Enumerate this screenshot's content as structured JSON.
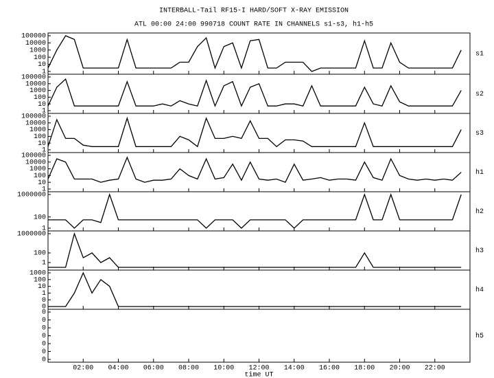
{
  "title": "INTERBALL-Tail RF15-I HARD/SOFT X-RAY EMISSION",
  "subtitle": "ATL 00:00 24:00 990718  COUNT RATE IN CHANNELS s1-s3, h1-h5",
  "chart_data": [
    {
      "type": "line",
      "name": "s1",
      "log": true,
      "color": "#000000",
      "xlim": [
        0,
        24
      ],
      "ylim": [
        1,
        100000
      ],
      "yticks": [
        100000,
        10000,
        1000,
        100,
        10,
        1
      ],
      "x": [
        0,
        0.5,
        1,
        1.5,
        2,
        2.5,
        3,
        3.5,
        4,
        4.5,
        5,
        5.5,
        6,
        6.5,
        7,
        7.5,
        8,
        8.5,
        9,
        9.5,
        10,
        10.5,
        11,
        11.5,
        12,
        12.5,
        13,
        13.5,
        14,
        14.5,
        15,
        15.5,
        16,
        16.5,
        17,
        17.5,
        18,
        18.5,
        19,
        19.5,
        20,
        20.5,
        21,
        21.5,
        22,
        22.5,
        23,
        23.5
      ],
      "values": [
        3,
        1000,
        100000,
        30000,
        3,
        3,
        3,
        3,
        3,
        30000,
        3,
        3,
        3,
        3,
        3,
        20,
        20,
        3000,
        50000,
        3,
        3000,
        10000,
        3,
        20000,
        30000,
        3,
        3,
        20,
        20,
        20,
        1,
        3,
        3,
        3,
        3,
        3,
        20000,
        3,
        3,
        10000,
        20,
        3,
        3,
        3,
        3,
        3,
        3,
        1000
      ]
    },
    {
      "type": "line",
      "name": "s2",
      "log": true,
      "color": "#000000",
      "xlim": [
        0,
        24
      ],
      "ylim": [
        1,
        100000
      ],
      "yticks": [
        100000,
        10000,
        1000,
        100,
        10,
        1
      ],
      "x": [
        0,
        0.5,
        1,
        1.5,
        2,
        2.5,
        3,
        3.5,
        4,
        4.5,
        5,
        5.5,
        6,
        6.5,
        7,
        7.5,
        8,
        8.5,
        9,
        9.5,
        10,
        10.5,
        11,
        11.5,
        12,
        12.5,
        13,
        13.5,
        14,
        14.5,
        15,
        15.5,
        16,
        16.5,
        17,
        17.5,
        18,
        18.5,
        19,
        19.5,
        20,
        20.5,
        21,
        21.5,
        22,
        22.5,
        23,
        23.5
      ],
      "values": [
        5,
        3000,
        50000,
        5,
        5,
        5,
        5,
        5,
        5,
        20000,
        5,
        5,
        5,
        10,
        5,
        30,
        10,
        5,
        30000,
        5,
        5000,
        20000,
        5,
        3000,
        10000,
        5,
        5,
        10,
        10,
        5,
        5000,
        5,
        5,
        5,
        5,
        5,
        3000,
        10,
        5,
        5000,
        20,
        5,
        5,
        5,
        5,
        5,
        5,
        1000
      ]
    },
    {
      "type": "line",
      "name": "s3",
      "log": true,
      "color": "#000000",
      "xlim": [
        0,
        24
      ],
      "ylim": [
        1,
        100000
      ],
      "yticks": [
        100000,
        10000,
        1000,
        100,
        10,
        1
      ],
      "x": [
        0,
        0.5,
        1,
        1.5,
        2,
        2.5,
        3,
        3.5,
        4,
        4.5,
        5,
        5.5,
        6,
        6.5,
        7,
        7.5,
        8,
        8.5,
        9,
        9.5,
        10,
        10.5,
        11,
        11.5,
        12,
        12.5,
        13,
        13.5,
        14,
        14.5,
        15,
        15.5,
        16,
        16.5,
        17,
        17.5,
        18,
        18.5,
        19,
        19.5,
        20,
        20.5,
        21,
        21.5,
        22,
        22.5,
        23,
        23.5
      ],
      "values": [
        3,
        30000,
        50,
        50,
        5,
        3,
        3,
        3,
        3,
        50000,
        3,
        3,
        3,
        3,
        3,
        100,
        30,
        3,
        50000,
        50,
        50,
        100,
        50,
        20000,
        50,
        50,
        3,
        30,
        30,
        20,
        3,
        3,
        3,
        3,
        3,
        3,
        10000,
        3,
        3,
        3,
        3,
        3,
        3,
        3,
        3,
        3,
        3,
        1000
      ]
    },
    {
      "type": "line",
      "name": "h1",
      "log": true,
      "color": "#000000",
      "xlim": [
        0,
        24
      ],
      "ylim": [
        1,
        100000
      ],
      "yticks": [
        100000,
        10000,
        1000,
        100,
        10,
        1
      ],
      "x": [
        0,
        0.5,
        1,
        1.5,
        2,
        2.5,
        3,
        3.5,
        4,
        4.5,
        5,
        5.5,
        6,
        6.5,
        7,
        7.5,
        8,
        8.5,
        9,
        9.5,
        10,
        10.5,
        11,
        11.5,
        12,
        12.5,
        13,
        13.5,
        14,
        14.5,
        15,
        15.5,
        16,
        16.5,
        17,
        17.5,
        18,
        18.5,
        19,
        19.5,
        20,
        20.5,
        21,
        21.5,
        22,
        22.5,
        23,
        23.5
      ],
      "values": [
        30,
        30000,
        10000,
        30,
        30,
        30,
        10,
        20,
        30,
        50000,
        30,
        10,
        20,
        20,
        30,
        1000,
        100,
        30,
        30000,
        30,
        50,
        5000,
        20,
        10000,
        30,
        20,
        30,
        10,
        5000,
        20,
        30,
        50,
        20,
        30,
        30,
        20,
        10000,
        50,
        20,
        30000,
        100,
        30,
        20,
        30,
        20,
        30,
        20,
        300
      ]
    },
    {
      "type": "line",
      "name": "h2",
      "log": true,
      "color": "#000000",
      "xlim": [
        0,
        24
      ],
      "ylim": [
        1,
        1000000
      ],
      "yticks": [
        1000000,
        100,
        1
      ],
      "x": [
        0,
        0.5,
        1,
        1.5,
        2,
        2.5,
        3,
        3.5,
        4,
        4.5,
        5,
        5.5,
        6,
        6.5,
        7,
        7.5,
        8,
        8.5,
        9,
        9.5,
        10,
        10.5,
        11,
        11.5,
        12,
        12.5,
        13,
        13.5,
        14,
        14.5,
        15,
        15.5,
        16,
        16.5,
        17,
        17.5,
        18,
        18.5,
        19,
        19.5,
        20,
        20.5,
        21,
        21.5,
        22,
        22.5,
        23,
        23.5
      ],
      "values": [
        30,
        30,
        30,
        1,
        30,
        30,
        10,
        1000000,
        30,
        30,
        30,
        30,
        30,
        30,
        30,
        30,
        30,
        30,
        1,
        30,
        30,
        30,
        1,
        30,
        30,
        30,
        30,
        30,
        1,
        30,
        30,
        30,
        30,
        30,
        30,
        30,
        1000000,
        30,
        30,
        1000000,
        30,
        30,
        30,
        30,
        30,
        30,
        30,
        1000000
      ]
    },
    {
      "type": "line",
      "name": "h3",
      "log": true,
      "color": "#000000",
      "xlim": [
        0,
        24
      ],
      "ylim": [
        0.1,
        1000000
      ],
      "yticks": [
        1000000,
        100,
        1
      ],
      "x": [
        0,
        0.5,
        1,
        1.5,
        2,
        2.5,
        3,
        3.5,
        4,
        4.5,
        5,
        5.5,
        6,
        6.5,
        7,
        7.5,
        8,
        8.5,
        9,
        9.5,
        10,
        10.5,
        11,
        11.5,
        12,
        12.5,
        13,
        13.5,
        14,
        14.5,
        15,
        15.5,
        16,
        16.5,
        17,
        17.5,
        18,
        18.5,
        19,
        19.5,
        20,
        20.5,
        21,
        21.5,
        22,
        22.5,
        23,
        23.5
      ],
      "values": [
        0.1,
        0.1,
        0.1,
        1000000,
        10,
        100,
        1,
        10,
        0.1,
        0.1,
        0.1,
        0.1,
        0.1,
        0.1,
        0.1,
        0.1,
        0.1,
        0.1,
        0.1,
        0.1,
        0.1,
        0.1,
        0.1,
        0.1,
        0.1,
        0.1,
        0.1,
        0.1,
        0.1,
        0.1,
        0.1,
        0.1,
        0.1,
        0.1,
        0.1,
        0.1,
        100,
        0.1,
        0.1,
        0.1,
        0.1,
        0.1,
        0.1,
        0.1,
        0.1,
        0.1,
        0.1,
        0.1
      ]
    },
    {
      "type": "line",
      "name": "h4",
      "log": true,
      "color": "#000000",
      "xlim": [
        0,
        24
      ],
      "ylim": [
        0.01,
        1000
      ],
      "yticks": [
        1000,
        100,
        10,
        1,
        {
          "value": 0.1,
          "label": "0"
        },
        {
          "value": 0.01,
          "label": "0"
        }
      ],
      "x": [
        0,
        0.5,
        1,
        1.5,
        2,
        2.5,
        3,
        3.5,
        4,
        4.5,
        5,
        5.5,
        6,
        6.5,
        7,
        7.5,
        8,
        8.5,
        9,
        9.5,
        10,
        10.5,
        11,
        11.5,
        12,
        12.5,
        13,
        13.5,
        14,
        14.5,
        15,
        15.5,
        16,
        16.5,
        17,
        17.5,
        18,
        18.5,
        19,
        19.5,
        20,
        20.5,
        21,
        21.5,
        22,
        22.5,
        23,
        23.5
      ],
      "values": [
        0.01,
        0.01,
        0.01,
        1,
        1000,
        1,
        100,
        10,
        0.01,
        0.01,
        0.01,
        0.01,
        0.01,
        0.01,
        0.01,
        0.01,
        0.01,
        0.01,
        0.01,
        0.01,
        0.01,
        0.01,
        0.01,
        0.01,
        0.01,
        0.01,
        0.01,
        0.01,
        0.01,
        0.01,
        0.01,
        0.01,
        0.01,
        0.01,
        0.01,
        0.01,
        0.01,
        0.01,
        0.01,
        0.01,
        0.01,
        0.01,
        0.01,
        0.01,
        0.01,
        0.01,
        0.01,
        0.01
      ]
    },
    {
      "type": "line",
      "name": "h5",
      "log": true,
      "color": "#000000",
      "xlim": [
        0,
        24
      ],
      "ylim": [
        1e-07,
        0.1
      ],
      "yticks": [
        {
          "value": 0.1,
          "label": "0"
        },
        {
          "value": 0.01,
          "label": "0"
        },
        {
          "value": 0.001,
          "label": "0"
        },
        {
          "value": 0.0001,
          "label": "0"
        },
        {
          "value": 1e-05,
          "label": "0"
        },
        {
          "value": 1e-06,
          "label": "0"
        },
        {
          "value": 1e-07,
          "label": "0"
        }
      ],
      "xlabel": "time UT",
      "xticks": [
        {
          "value": 2,
          "label": "02:00"
        },
        {
          "value": 4,
          "label": "04:00"
        },
        {
          "value": 6,
          "label": "06:00"
        },
        {
          "value": 8,
          "label": "08:00"
        },
        {
          "value": 10,
          "label": "10:00"
        },
        {
          "value": 12,
          "label": "12:00"
        },
        {
          "value": 14,
          "label": "14:00"
        },
        {
          "value": 16,
          "label": "16:00"
        },
        {
          "value": 18,
          "label": "18:00"
        },
        {
          "value": 20,
          "label": "20:00"
        },
        {
          "value": 22,
          "label": "22:00"
        }
      ]
    }
  ]
}
